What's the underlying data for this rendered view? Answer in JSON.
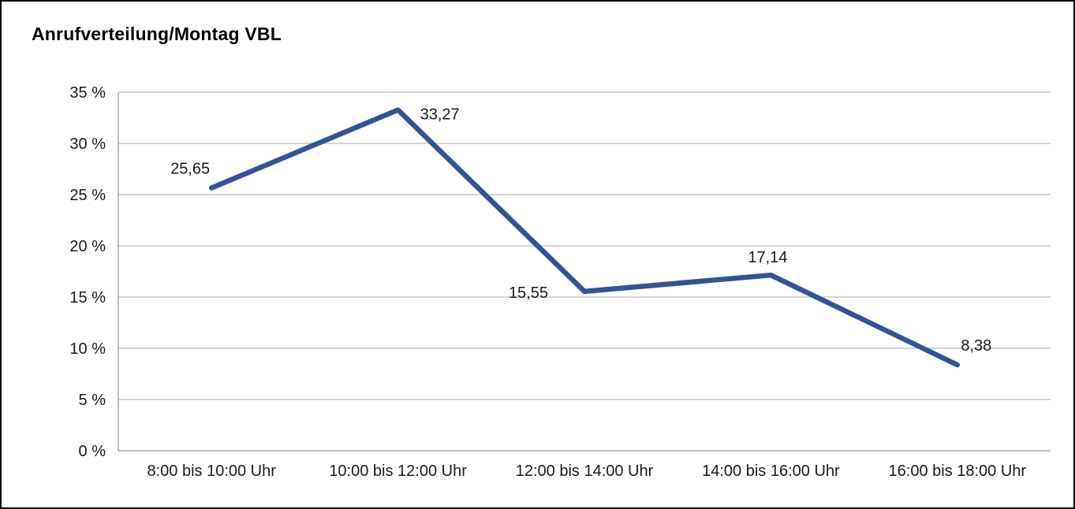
{
  "page": {
    "title": "Anrufverteilung/Montag VBL"
  },
  "chart_data": {
    "type": "line",
    "title": "Anrufverteilung/Montag VBL",
    "categories": [
      "8:00 bis 10:00 Uhr",
      "10:00 bis 12:00 Uhr",
      "12:00 bis 14:00 Uhr",
      "14:00 bis 16:00 Uhr",
      "16:00 bis 18:00 Uhr"
    ],
    "values": [
      25.65,
      33.27,
      15.55,
      17.14,
      8.38
    ],
    "value_labels": [
      "25,65",
      "33,27",
      "15,55",
      "17,14",
      "8,38"
    ],
    "xlabel": "",
    "ylabel": "",
    "ylim": [
      0,
      35
    ],
    "ytick_step": 5,
    "ytick_suffix": " %",
    "ytick_labels": [
      "0 %",
      "5 %",
      "10 %",
      "15 %",
      "20 %",
      "25 %",
      "30 %",
      "35 %"
    ],
    "grid": true,
    "legend": "none",
    "line_color": "#2f5597",
    "grid_color": "#c6c6c6",
    "axis_color": "#a8a8a8",
    "label_color": "#1a1a1a"
  }
}
